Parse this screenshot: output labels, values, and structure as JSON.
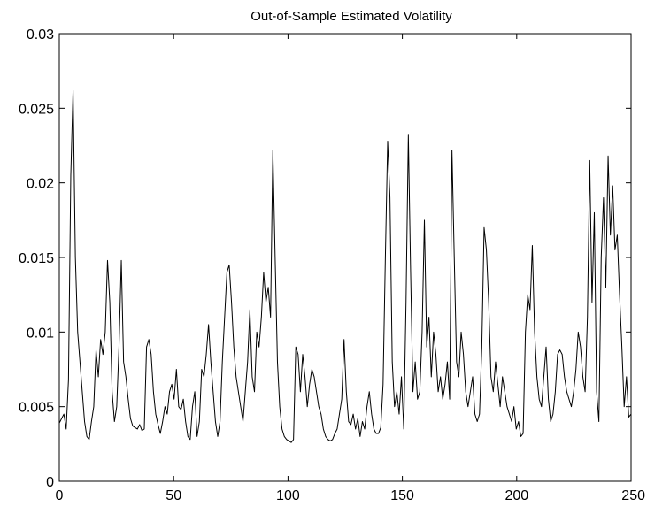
{
  "chart_data": {
    "type": "line",
    "title": "Out-of-Sample Estimated Volatility",
    "xlabel": "",
    "ylabel": "",
    "xlim": [
      0,
      250
    ],
    "ylim": [
      0,
      0.03
    ],
    "grid": false,
    "xticks": [
      0,
      50,
      100,
      150,
      200,
      250
    ],
    "xtick_labels": [
      "0",
      "50",
      "100",
      "150",
      "200",
      "250"
    ],
    "yticks": [
      0,
      0.005,
      0.01,
      0.015,
      0.02,
      0.025,
      0.03
    ],
    "ytick_labels": [
      "0",
      "0.005",
      "0.01",
      "0.015",
      "0.02",
      "0.025",
      "0.03"
    ],
    "line_color": "#000000",
    "series": [
      {
        "values": [
          0.0039,
          0.0042,
          0.0045,
          0.0035,
          0.0068,
          0.0205,
          0.0262,
          0.015,
          0.01,
          0.008,
          0.006,
          0.004,
          0.003,
          0.0028,
          0.004,
          0.005,
          0.0088,
          0.007,
          0.0095,
          0.0085,
          0.01,
          0.0148,
          0.012,
          0.006,
          0.004,
          0.005,
          0.009,
          0.0148,
          0.008,
          0.007,
          0.0055,
          0.0042,
          0.0037,
          0.0036,
          0.0035,
          0.0038,
          0.0034,
          0.0035,
          0.009,
          0.0095,
          0.0085,
          0.006,
          0.0045,
          0.0038,
          0.0032,
          0.004,
          0.005,
          0.0045,
          0.006,
          0.0065,
          0.0055,
          0.0075,
          0.005,
          0.0048,
          0.0055,
          0.004,
          0.003,
          0.0028,
          0.005,
          0.006,
          0.003,
          0.004,
          0.0075,
          0.007,
          0.0085,
          0.0105,
          0.008,
          0.006,
          0.004,
          0.003,
          0.004,
          0.008,
          0.011,
          0.014,
          0.0145,
          0.012,
          0.009,
          0.007,
          0.006,
          0.005,
          0.004,
          0.006,
          0.008,
          0.0115,
          0.007,
          0.006,
          0.01,
          0.009,
          0.011,
          0.014,
          0.012,
          0.013,
          0.011,
          0.0222,
          0.015,
          0.008,
          0.005,
          0.0035,
          0.003,
          0.0028,
          0.0027,
          0.0026,
          0.0028,
          0.009,
          0.0085,
          0.006,
          0.0085,
          0.007,
          0.005,
          0.0065,
          0.0075,
          0.007,
          0.006,
          0.005,
          0.0045,
          0.0035,
          0.003,
          0.0028,
          0.0027,
          0.0028,
          0.0032,
          0.0035,
          0.0045,
          0.0055,
          0.0095,
          0.006,
          0.004,
          0.0038,
          0.0045,
          0.0035,
          0.0042,
          0.003,
          0.004,
          0.0035,
          0.005,
          0.006,
          0.0045,
          0.0035,
          0.0032,
          0.0032,
          0.0036,
          0.0065,
          0.015,
          0.0228,
          0.019,
          0.008,
          0.005,
          0.006,
          0.0045,
          0.007,
          0.0035,
          0.012,
          0.0232,
          0.014,
          0.006,
          0.008,
          0.0055,
          0.006,
          0.01,
          0.0175,
          0.009,
          0.011,
          0.007,
          0.01,
          0.0085,
          0.006,
          0.007,
          0.0055,
          0.0065,
          0.008,
          0.0055,
          0.0222,
          0.015,
          0.008,
          0.007,
          0.01,
          0.0085,
          0.006,
          0.005,
          0.006,
          0.007,
          0.0045,
          0.004,
          0.0045,
          0.009,
          0.017,
          0.0155,
          0.012,
          0.007,
          0.006,
          0.008,
          0.0065,
          0.005,
          0.007,
          0.006,
          0.005,
          0.0045,
          0.004,
          0.005,
          0.0035,
          0.004,
          0.003,
          0.0032,
          0.01,
          0.0125,
          0.0115,
          0.0158,
          0.01,
          0.007,
          0.0055,
          0.005,
          0.007,
          0.009,
          0.0055,
          0.004,
          0.0045,
          0.006,
          0.0085,
          0.0088,
          0.0085,
          0.007,
          0.006,
          0.0055,
          0.005,
          0.006,
          0.0075,
          0.01,
          0.009,
          0.007,
          0.006,
          0.011,
          0.0215,
          0.012,
          0.018,
          0.006,
          0.004,
          0.015,
          0.019,
          0.013,
          0.0218,
          0.0165,
          0.0198,
          0.0155,
          0.0165,
          0.0125,
          0.009,
          0.005,
          0.007,
          0.0043,
          0.0045
        ]
      }
    ]
  }
}
